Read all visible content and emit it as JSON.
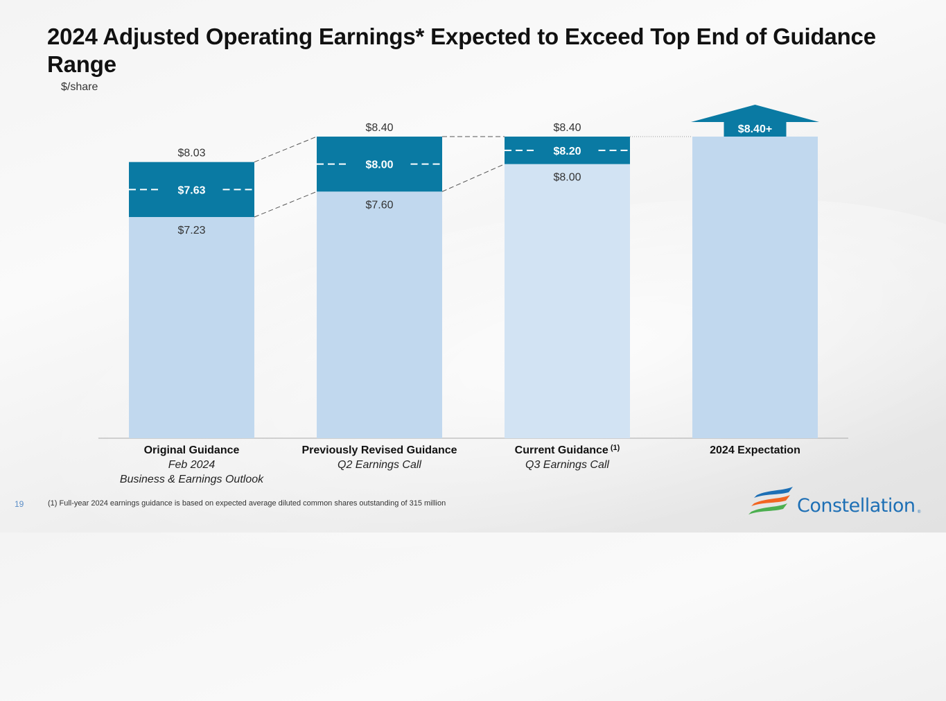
{
  "slide": {
    "title": "2024 Adjusted Operating Earnings* Expected to Exceed Top End of Guidance Range",
    "unit": "$/share",
    "page_number": "19",
    "footnote": "(1)    Full-year 2024 earnings guidance is based on expected average diluted common shares outstanding of 315 million",
    "logo_text": "Constellation",
    "logo_reg": "®"
  },
  "colors": {
    "range": "#0a7aa3",
    "base": "#c1d8ee",
    "base_current": "#d2e3f3",
    "label_dark": "#333333",
    "label_light": "#ffffff"
  },
  "chart_data": {
    "type": "bar",
    "title": "2024 Adjusted Operating Earnings* Expected to Exceed Top End of Guidance Range",
    "ylabel": "$/share",
    "xlabel": "",
    "ylim": [
      0,
      8.6
    ],
    "grid": false,
    "categories": [
      {
        "label": "Original Guidance",
        "superscript": "",
        "sub1": "Feb 2024",
        "sub2": "Business & Earnings Outlook"
      },
      {
        "label": "Previously Revised Guidance",
        "superscript": "",
        "sub1": "Q2 Earnings Call",
        "sub2": ""
      },
      {
        "label": "Current Guidance",
        "superscript": "(1)",
        "sub1": "Q3 Earnings Call",
        "sub2": ""
      },
      {
        "label": "2024 Expectation",
        "superscript": "",
        "sub1": "",
        "sub2": ""
      }
    ],
    "series": [
      {
        "name": "Low end",
        "values": [
          7.23,
          7.6,
          8.0,
          8.4
        ]
      },
      {
        "name": "Midpoint",
        "values": [
          7.63,
          8.0,
          8.2,
          null
        ]
      },
      {
        "name": "High end",
        "values": [
          8.03,
          8.4,
          8.4,
          null
        ]
      }
    ],
    "labels": {
      "low": [
        "$7.23",
        "$7.60",
        "$8.00",
        ""
      ],
      "mid": [
        "$7.63",
        "$8.00",
        "$8.20",
        ""
      ],
      "high": [
        "$8.03",
        "$8.40",
        "$8.40",
        ""
      ],
      "expectation": "$8.40+"
    },
    "annotations": [
      "Upward arrow on 2024 Expectation: $8.40+"
    ]
  }
}
